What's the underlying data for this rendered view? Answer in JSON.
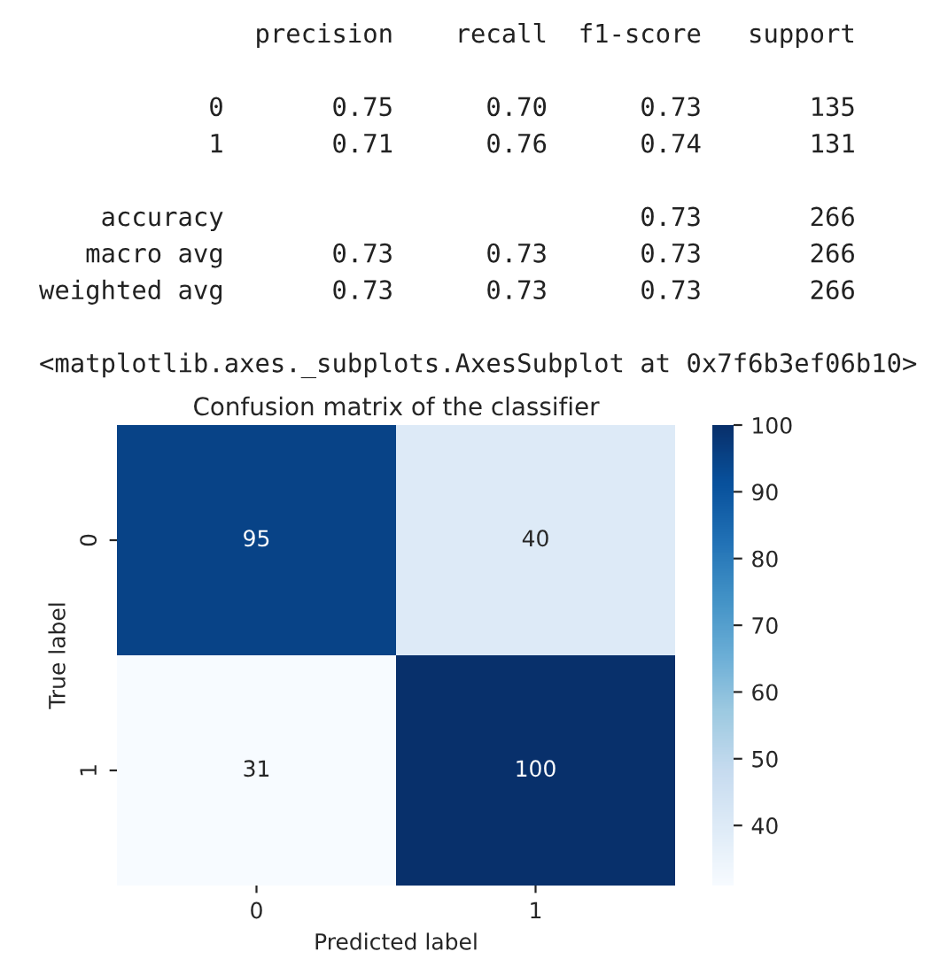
{
  "chart_data": [
    {
      "type": "other",
      "annotations": [
        "              precision    recall  f1-score   support",
        "           0       0.75      0.70      0.73       135",
        "           1       0.71      0.76      0.74       131",
        "    accuracy                           0.73       266",
        "   macro avg       0.73      0.73      0.73       266",
        "weighted avg       0.73      0.73      0.73       266",
        "<matplotlib.axes._subplots.AxesSubplot at 0x7f6b3ef06b10>"
      ]
    },
    {
      "type": "heatmap",
      "title": "Confusion matrix of the classifier",
      "xlabel": "Predicted label",
      "ylabel": "True label",
      "categories": [
        "0",
        "1"
      ],
      "y_categories": [
        "0",
        "1"
      ],
      "cells": [
        [
          95,
          40
        ],
        [
          31,
          100
        ]
      ],
      "clim": [
        31,
        100
      ],
      "cticks": [
        40,
        50,
        60,
        70,
        80,
        90,
        100
      ],
      "data_labels": true
    }
  ]
}
